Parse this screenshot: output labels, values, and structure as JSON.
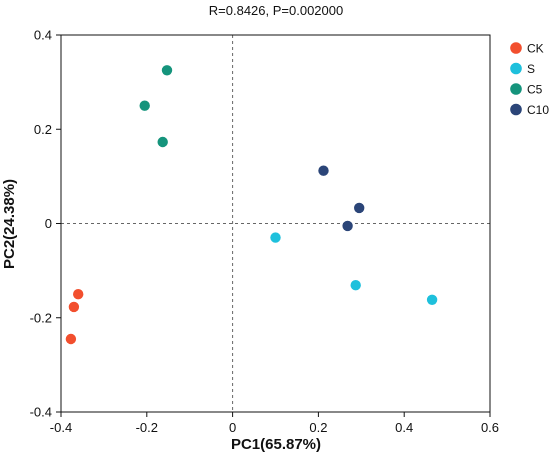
{
  "chart_data": {
    "type": "scatter",
    "title": "R=0.8426, P=0.002000",
    "xlabel": "PC1(65.87%)",
    "ylabel": "PC2(24.38%)",
    "xlim": [
      -0.4,
      0.6
    ],
    "ylim": [
      -0.4,
      0.4
    ],
    "xticks": [
      -0.4,
      -0.2,
      0,
      0.2,
      0.4,
      0.6
    ],
    "yticks": [
      -0.4,
      -0.2,
      0,
      0.2,
      0.4
    ],
    "xtick_labels": [
      "-0.4",
      "-0.2",
      "0",
      "0.2",
      "0.4",
      "0.6"
    ],
    "ytick_labels": [
      "-0.4",
      "-0.2",
      "0",
      "0.2",
      "0.4"
    ],
    "grid": false,
    "reference_lines": "dashed lines at x=0 and y=0",
    "legend_position": "right",
    "series": [
      {
        "name": "CK",
        "color": "#f24f2e",
        "points": [
          [
            -0.36,
            -0.15
          ],
          [
            -0.37,
            -0.177
          ],
          [
            -0.377,
            -0.245
          ]
        ]
      },
      {
        "name": "S",
        "color": "#1ec0dc",
        "points": [
          [
            0.1,
            -0.03
          ],
          [
            0.287,
            -0.131
          ],
          [
            0.465,
            -0.162
          ]
        ]
      },
      {
        "name": "C5",
        "color": "#15947c",
        "points": [
          [
            -0.153,
            0.325
          ],
          [
            -0.205,
            0.25
          ],
          [
            -0.163,
            0.173
          ]
        ]
      },
      {
        "name": "C10",
        "color": "#2b4578",
        "points": [
          [
            0.212,
            0.112
          ],
          [
            0.295,
            0.033
          ],
          [
            0.268,
            -0.005
          ]
        ]
      }
    ]
  }
}
